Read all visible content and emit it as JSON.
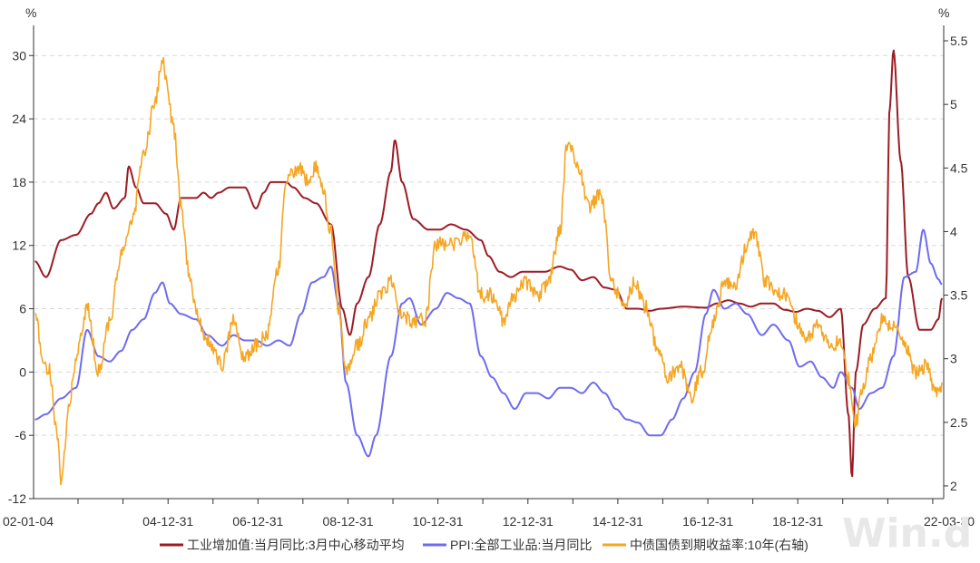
{
  "chart_data": {
    "type": "line",
    "left_axis": {
      "unit": "%",
      "ylim": [
        -12,
        32
      ],
      "ticks": [
        30,
        24,
        18,
        12,
        6,
        0,
        -6,
        -12
      ],
      "tick_labels": [
        "30",
        "24",
        "18",
        "12",
        "6",
        "0",
        "-6",
        "-12"
      ]
    },
    "right_axis": {
      "unit": "%",
      "ylim": [
        1.9,
        5.55
      ],
      "ticks": [
        5.5,
        5,
        4.5,
        4,
        3.5,
        3,
        2.5,
        2
      ],
      "tick_labels": [
        "5.5",
        "5",
        "4.5",
        "4",
        "3.5",
        "3",
        "2.5",
        "2"
      ]
    },
    "x_axis": {
      "start": "2002-01-04",
      "end": "2022-03-30",
      "tick_labels": [
        {
          "label": "02-01-04",
          "date": "2002-01-04"
        },
        {
          "label": "04-12-31",
          "date": "2004-12-31"
        },
        {
          "label": "06-12-31",
          "date": "2006-12-31"
        },
        {
          "label": "08-12-31",
          "date": "2008-12-31"
        },
        {
          "label": "10-12-31",
          "date": "2010-12-31"
        },
        {
          "label": "12-12-31",
          "date": "2012-12-31"
        },
        {
          "label": "14-12-31",
          "date": "2014-12-31"
        },
        {
          "label": "16-12-31",
          "date": "2016-12-31"
        },
        {
          "label": "18-12-31",
          "date": "2018-12-31"
        },
        {
          "label": "22-03-30",
          "date": "2022-03-30"
        }
      ]
    },
    "grid": true,
    "legend_position": "bottom",
    "series": [
      {
        "name": "工业增加值:当月同比:3月中心移动平均",
        "axis": "left",
        "color": "#9b1c24",
        "points": [
          [
            "2002-01",
            10.5
          ],
          [
            "2002-04",
            9.0
          ],
          [
            "2002-08",
            12.5
          ],
          [
            "2002-12",
            13.0
          ],
          [
            "2003-04",
            15.0
          ],
          [
            "2003-06",
            16.0
          ],
          [
            "2003-08",
            17.0
          ],
          [
            "2003-10",
            15.5
          ],
          [
            "2004-01",
            16.5
          ],
          [
            "2004-02",
            19.5
          ],
          [
            "2004-04",
            17.5
          ],
          [
            "2004-06",
            16.0
          ],
          [
            "2004-09",
            16.0
          ],
          [
            "2004-12",
            15.0
          ],
          [
            "2005-02",
            13.5
          ],
          [
            "2005-04",
            16.5
          ],
          [
            "2005-08",
            16.5
          ],
          [
            "2005-10",
            17.0
          ],
          [
            "2005-12",
            16.5
          ],
          [
            "2006-02",
            17.0
          ],
          [
            "2006-05",
            17.5
          ],
          [
            "2006-09",
            17.5
          ],
          [
            "2006-12",
            15.5
          ],
          [
            "2007-02",
            17.0
          ],
          [
            "2007-04",
            18.0
          ],
          [
            "2007-08",
            18.0
          ],
          [
            "2007-10",
            17.5
          ],
          [
            "2008-01",
            16.5
          ],
          [
            "2008-04",
            16.0
          ],
          [
            "2008-08",
            14.0
          ],
          [
            "2008-11",
            6.0
          ],
          [
            "2009-01",
            3.5
          ],
          [
            "2009-03",
            6.5
          ],
          [
            "2009-06",
            9.0
          ],
          [
            "2009-09",
            14.0
          ],
          [
            "2009-12",
            19.0
          ],
          [
            "2010-01",
            22.0
          ],
          [
            "2010-03",
            18.0
          ],
          [
            "2010-06",
            14.5
          ],
          [
            "2010-10",
            13.5
          ],
          [
            "2011-01",
            13.5
          ],
          [
            "2011-04",
            14.0
          ],
          [
            "2011-08",
            13.5
          ],
          [
            "2011-12",
            12.5
          ],
          [
            "2012-02",
            11.0
          ],
          [
            "2012-05",
            9.5
          ],
          [
            "2012-08",
            9.0
          ],
          [
            "2012-11",
            9.5
          ],
          [
            "2013-02",
            9.5
          ],
          [
            "2013-05",
            9.5
          ],
          [
            "2013-09",
            10.0
          ],
          [
            "2013-12",
            9.7
          ],
          [
            "2014-03",
            8.7
          ],
          [
            "2014-06",
            9.0
          ],
          [
            "2014-09",
            8.0
          ],
          [
            "2014-12",
            7.8
          ],
          [
            "2015-03",
            6.0
          ],
          [
            "2015-06",
            6.0
          ],
          [
            "2015-09",
            5.8
          ],
          [
            "2015-12",
            6.0
          ],
          [
            "2016-06",
            6.2
          ],
          [
            "2016-12",
            6.1
          ],
          [
            "2017-03",
            6.5
          ],
          [
            "2017-06",
            6.8
          ],
          [
            "2017-09",
            6.5
          ],
          [
            "2017-12",
            6.2
          ],
          [
            "2018-03",
            6.5
          ],
          [
            "2018-06",
            6.5
          ],
          [
            "2018-09",
            5.9
          ],
          [
            "2018-12",
            5.7
          ],
          [
            "2019-03",
            6.0
          ],
          [
            "2019-06",
            5.8
          ],
          [
            "2019-09",
            5.2
          ],
          [
            "2019-12",
            6.0
          ],
          [
            "2020-02",
            -4.0
          ],
          [
            "2020-03",
            -10.0
          ],
          [
            "2020-04",
            0.0
          ],
          [
            "2020-06",
            4.5
          ],
          [
            "2020-09",
            6.0
          ],
          [
            "2020-12",
            7.0
          ],
          [
            "2021-01",
            25.0
          ],
          [
            "2021-02",
            30.5
          ],
          [
            "2021-04",
            20.0
          ],
          [
            "2021-06",
            9.0
          ],
          [
            "2021-09",
            4.0
          ],
          [
            "2021-12",
            4.0
          ],
          [
            "2022-02",
            5.0
          ],
          [
            "2022-03",
            7.0
          ]
        ]
      },
      {
        "name": "PPI:全部工业品:当月同比",
        "axis": "left",
        "color": "#6f6bf0",
        "points": [
          [
            "2002-01",
            -4.5
          ],
          [
            "2002-04",
            -4.0
          ],
          [
            "2002-08",
            -2.5
          ],
          [
            "2002-12",
            -1.5
          ],
          [
            "2003-03",
            4.0
          ],
          [
            "2003-06",
            1.5
          ],
          [
            "2003-09",
            1.0
          ],
          [
            "2003-12",
            2.0
          ],
          [
            "2004-03",
            4.0
          ],
          [
            "2004-06",
            5.0
          ],
          [
            "2004-09",
            7.5
          ],
          [
            "2004-11",
            8.5
          ],
          [
            "2005-01",
            6.5
          ],
          [
            "2005-04",
            5.5
          ],
          [
            "2005-08",
            5.0
          ],
          [
            "2005-11",
            3.5
          ],
          [
            "2006-03",
            2.5
          ],
          [
            "2006-06",
            3.5
          ],
          [
            "2006-09",
            3.0
          ],
          [
            "2006-12",
            3.0
          ],
          [
            "2007-03",
            2.5
          ],
          [
            "2007-06",
            3.0
          ],
          [
            "2007-09",
            2.5
          ],
          [
            "2007-12",
            5.5
          ],
          [
            "2008-03",
            8.5
          ],
          [
            "2008-06",
            9.0
          ],
          [
            "2008-08",
            10.0
          ],
          [
            "2008-10",
            6.5
          ],
          [
            "2008-12",
            -1.0
          ],
          [
            "2009-03",
            -6.0
          ],
          [
            "2009-06",
            -8.0
          ],
          [
            "2009-08",
            -6.0
          ],
          [
            "2009-12",
            1.5
          ],
          [
            "2010-03",
            6.5
          ],
          [
            "2010-05",
            7.0
          ],
          [
            "2010-08",
            4.5
          ],
          [
            "2010-12",
            6.0
          ],
          [
            "2011-03",
            7.5
          ],
          [
            "2011-06",
            7.0
          ],
          [
            "2011-09",
            6.5
          ],
          [
            "2011-12",
            1.5
          ],
          [
            "2012-03",
            -0.5
          ],
          [
            "2012-06",
            -2.0
          ],
          [
            "2012-09",
            -3.5
          ],
          [
            "2012-12",
            -2.0
          ],
          [
            "2013-03",
            -2.0
          ],
          [
            "2013-06",
            -2.5
          ],
          [
            "2013-09",
            -1.5
          ],
          [
            "2013-12",
            -1.5
          ],
          [
            "2014-03",
            -2.0
          ],
          [
            "2014-06",
            -1.0
          ],
          [
            "2014-09",
            -2.0
          ],
          [
            "2014-12",
            -3.5
          ],
          [
            "2015-03",
            -4.5
          ],
          [
            "2015-06",
            -4.8
          ],
          [
            "2015-09",
            -6.0
          ],
          [
            "2015-12",
            -6.0
          ],
          [
            "2016-03",
            -4.5
          ],
          [
            "2016-06",
            -2.5
          ],
          [
            "2016-09",
            0.0
          ],
          [
            "2016-12",
            5.5
          ],
          [
            "2017-02",
            7.8
          ],
          [
            "2017-05",
            6.0
          ],
          [
            "2017-08",
            6.5
          ],
          [
            "2017-11",
            5.5
          ],
          [
            "2018-03",
            3.5
          ],
          [
            "2018-06",
            4.5
          ],
          [
            "2018-10",
            3.0
          ],
          [
            "2019-01",
            0.5
          ],
          [
            "2019-04",
            1.0
          ],
          [
            "2019-07",
            -0.5
          ],
          [
            "2019-10",
            -1.5
          ],
          [
            "2019-12",
            0.0
          ],
          [
            "2020-03",
            -1.5
          ],
          [
            "2020-05",
            -3.5
          ],
          [
            "2020-08",
            -2.0
          ],
          [
            "2020-11",
            -1.5
          ],
          [
            "2021-02",
            1.5
          ],
          [
            "2021-05",
            9.0
          ],
          [
            "2021-08",
            9.5
          ],
          [
            "2021-10",
            13.5
          ],
          [
            "2021-12",
            10.3
          ],
          [
            "2022-02",
            8.8
          ],
          [
            "2022-03",
            8.3
          ]
        ]
      },
      {
        "name": "中债国债到期收益率:10年(右轴)",
        "axis": "right",
        "color": "#f5a623",
        "points": [
          [
            "2002-01",
            3.4
          ],
          [
            "2002-03",
            3.0
          ],
          [
            "2002-05",
            2.9
          ],
          [
            "2002-07",
            2.4
          ],
          [
            "2002-08",
            2.0
          ],
          [
            "2002-10",
            2.6
          ],
          [
            "2002-12",
            3.0
          ],
          [
            "2003-03",
            3.4
          ],
          [
            "2003-06",
            2.9
          ],
          [
            "2003-09",
            3.3
          ],
          [
            "2003-12",
            3.8
          ],
          [
            "2004-03",
            4.1
          ],
          [
            "2004-06",
            4.6
          ],
          [
            "2004-09",
            5.0
          ],
          [
            "2004-11",
            5.35
          ],
          [
            "2004-12",
            5.2
          ],
          [
            "2005-02",
            4.8
          ],
          [
            "2005-04",
            4.2
          ],
          [
            "2005-06",
            3.7
          ],
          [
            "2005-08",
            3.4
          ],
          [
            "2005-10",
            3.2
          ],
          [
            "2005-12",
            3.1
          ],
          [
            "2006-03",
            2.95
          ],
          [
            "2006-06",
            3.3
          ],
          [
            "2006-09",
            3.0
          ],
          [
            "2006-12",
            3.1
          ],
          [
            "2007-03",
            3.2
          ],
          [
            "2007-06",
            3.7
          ],
          [
            "2007-08",
            4.4
          ],
          [
            "2007-11",
            4.5
          ],
          [
            "2008-02",
            4.4
          ],
          [
            "2008-04",
            4.5
          ],
          [
            "2008-06",
            4.3
          ],
          [
            "2008-08",
            4.0
          ],
          [
            "2008-10",
            3.4
          ],
          [
            "2008-12",
            2.9
          ],
          [
            "2009-03",
            3.1
          ],
          [
            "2009-06",
            3.3
          ],
          [
            "2009-09",
            3.5
          ],
          [
            "2009-12",
            3.6
          ],
          [
            "2010-03",
            3.35
          ],
          [
            "2010-06",
            3.3
          ],
          [
            "2010-09",
            3.3
          ],
          [
            "2010-12",
            3.9
          ],
          [
            "2011-03",
            3.9
          ],
          [
            "2011-06",
            3.9
          ],
          [
            "2011-09",
            4.0
          ],
          [
            "2011-12",
            3.5
          ],
          [
            "2012-03",
            3.5
          ],
          [
            "2012-06",
            3.3
          ],
          [
            "2012-09",
            3.5
          ],
          [
            "2012-12",
            3.6
          ],
          [
            "2013-03",
            3.5
          ],
          [
            "2013-06",
            3.6
          ],
          [
            "2013-09",
            4.0
          ],
          [
            "2013-11",
            4.7
          ],
          [
            "2014-02",
            4.5
          ],
          [
            "2014-05",
            4.2
          ],
          [
            "2014-08",
            4.3
          ],
          [
            "2014-11",
            3.6
          ],
          [
            "2015-02",
            3.4
          ],
          [
            "2015-05",
            3.6
          ],
          [
            "2015-08",
            3.4
          ],
          [
            "2015-11",
            3.1
          ],
          [
            "2016-02",
            2.85
          ],
          [
            "2016-05",
            2.95
          ],
          [
            "2016-08",
            2.7
          ],
          [
            "2016-11",
            2.9
          ],
          [
            "2017-02",
            3.3
          ],
          [
            "2017-05",
            3.6
          ],
          [
            "2017-08",
            3.6
          ],
          [
            "2017-11",
            3.9
          ],
          [
            "2018-01",
            4.0
          ],
          [
            "2018-04",
            3.6
          ],
          [
            "2018-07",
            3.5
          ],
          [
            "2018-10",
            3.5
          ],
          [
            "2018-12",
            3.3
          ],
          [
            "2019-03",
            3.15
          ],
          [
            "2019-06",
            3.25
          ],
          [
            "2019-09",
            3.1
          ],
          [
            "2019-12",
            3.15
          ],
          [
            "2020-02",
            2.85
          ],
          [
            "2020-04",
            2.5
          ],
          [
            "2020-06",
            2.8
          ],
          [
            "2020-08",
            3.0
          ],
          [
            "2020-11",
            3.3
          ],
          [
            "2021-02",
            3.25
          ],
          [
            "2021-05",
            3.1
          ],
          [
            "2021-08",
            2.9
          ],
          [
            "2021-11",
            2.95
          ],
          [
            "2022-01",
            2.75
          ],
          [
            "2022-03",
            2.8
          ]
        ]
      }
    ]
  },
  "watermark_text": "Win.d"
}
